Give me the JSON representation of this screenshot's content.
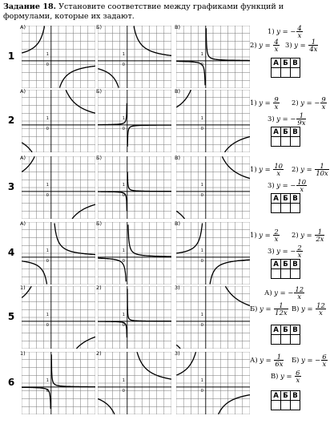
{
  "title": {
    "bold": "Задание 18.",
    "text": "Установите соответствие между графиками функций и формулами, которые их задают."
  },
  "answer_headers": [
    "А",
    "Б",
    "В"
  ],
  "rows": [
    {
      "num": "1",
      "labels": [
        "А)",
        "Б)",
        "В)"
      ],
      "formulas": [
        {
          "tag": "1)",
          "pre": "y = −",
          "num": "4",
          "den": "x"
        },
        {
          "tag": "2)",
          "pre": "y = ",
          "num": "4",
          "den": "x"
        },
        {
          "tag": "3)",
          "pre": "y = ",
          "num": "1",
          "den": "4x"
        }
      ]
    },
    {
      "num": "2",
      "labels": [
        "А)",
        "Б)",
        "В)"
      ],
      "formulas": [
        {
          "tag": "1)",
          "pre": "y = ",
          "num": "9",
          "den": "x"
        },
        {
          "tag": "2)",
          "pre": "y = −",
          "num": "9",
          "den": "x"
        },
        {
          "tag": "3)",
          "pre": "y = −",
          "num": "1",
          "den": "9x"
        }
      ]
    },
    {
      "num": "3",
      "labels": [
        "А)",
        "Б)",
        "В)"
      ],
      "formulas": [
        {
          "tag": "1)",
          "pre": "y = ",
          "num": "10",
          "den": "x"
        },
        {
          "tag": "2)",
          "pre": "y = ",
          "num": "1",
          "den": "10x"
        },
        {
          "tag": "3)",
          "pre": "y = −",
          "num": "10",
          "den": "x"
        }
      ]
    },
    {
      "num": "4",
      "labels": [
        "А)",
        "Б)",
        "В)"
      ],
      "formulas": [
        {
          "tag": "1)",
          "pre": "y = ",
          "num": "2",
          "den": "x"
        },
        {
          "tag": "2)",
          "pre": "y = ",
          "num": "1",
          "den": "2x"
        },
        {
          "tag": "3)",
          "pre": "y = −",
          "num": "2",
          "den": "x"
        }
      ]
    },
    {
      "num": "5",
      "labels": [
        "1)",
        "2)",
        "3)"
      ],
      "formulas": [
        {
          "tag": "А)",
          "pre": "y = −",
          "num": "12",
          "den": "x"
        },
        {
          "tag": "Б)",
          "pre": "y = ",
          "num": "1",
          "den": "12x"
        },
        {
          "tag": "В)",
          "pre": "y = ",
          "num": "12",
          "den": "x"
        }
      ]
    },
    {
      "num": "6",
      "labels": [
        "1)",
        "2)",
        "3)"
      ],
      "formulas": [
        {
          "tag": "А)",
          "pre": "y = ",
          "num": "1",
          "den": "6x"
        },
        {
          "tag": "Б)",
          "pre": "y = −",
          "num": "6",
          "den": "x"
        },
        {
          "tag": "В)",
          "pre": "y = ",
          "num": "6",
          "den": "x"
        }
      ]
    }
  ],
  "graphs": [
    [
      {
        "k": -4
      },
      {
        "k": 4
      },
      {
        "k": 0.25
      }
    ],
    [
      {
        "k": 9
      },
      {
        "k": -0.111
      },
      {
        "k": -9
      }
    ],
    [
      {
        "k": -10
      },
      {
        "k": 0.1
      },
      {
        "k": 10
      }
    ],
    [
      {
        "k": 2
      },
      {
        "k": 0.5
      },
      {
        "k": -2
      }
    ],
    [
      {
        "k": -12
      },
      {
        "k": 0.083
      },
      {
        "k": 12
      }
    ],
    [
      {
        "k": 0.167
      },
      {
        "k": 6
      },
      {
        "k": -6
      }
    ]
  ],
  "graph_axis_labels": {
    "unit": "1",
    "origin": "0"
  }
}
